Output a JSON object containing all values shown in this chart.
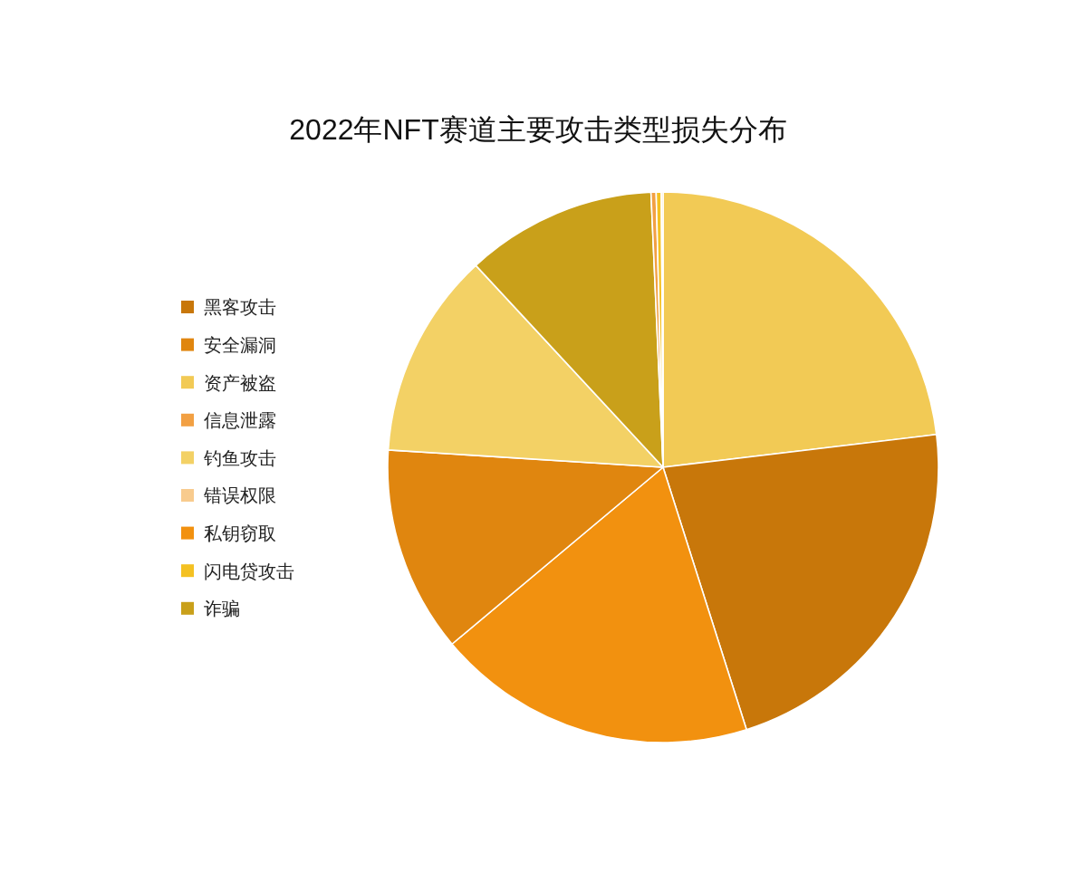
{
  "chart_data": {
    "type": "pie",
    "title": "2022年NFT赛道主要攻击类型损失分布",
    "categories": [
      "黑客攻击",
      "安全漏洞",
      "资产被盗",
      "信息泄露",
      "钓鱼攻击",
      "错误权限",
      "私钥窃取",
      "闪电贷攻击",
      "诈骗"
    ],
    "values": [
      22.0,
      12.1,
      23.1,
      0.3,
      12.1,
      0.1,
      18.8,
      0.3,
      11.2
    ],
    "colors": [
      "#c8770a",
      "#e0860f",
      "#f2ca55",
      "#f2a043",
      "#f3d165",
      "#f8cb8e",
      "#f2910f",
      "#f4c122",
      "#c9a01a"
    ],
    "legend": "left"
  }
}
